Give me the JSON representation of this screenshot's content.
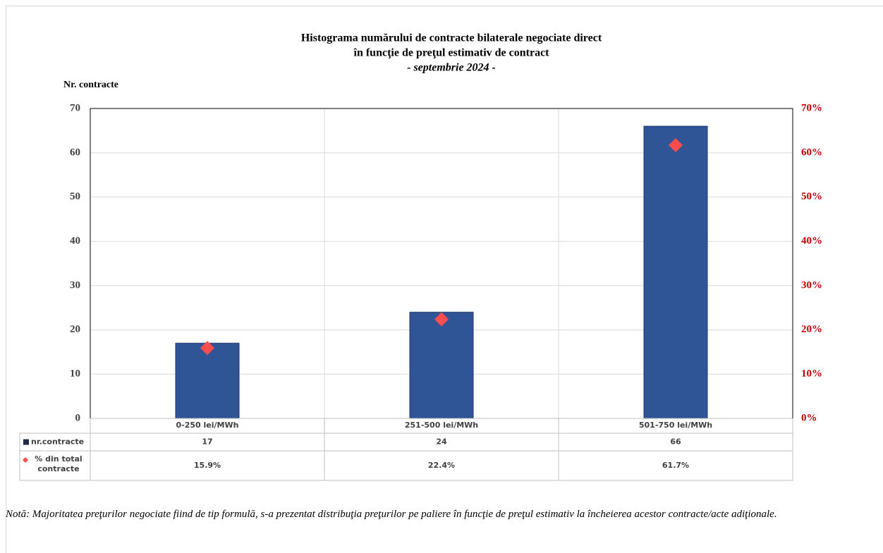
{
  "chart_data": {
    "type": "bar",
    "title": [
      "Histograma numărului de contracte bilaterale negociate direct",
      "în funcţie de preţul estimativ de contract"
    ],
    "subtitle": "-  septembrie 2024  -",
    "y_label": "Nr. contracte",
    "categories": [
      "0-250 lei/MWh",
      "251-500 lei/MWh",
      "501-750 lei/MWh"
    ],
    "series": [
      {
        "name": "nr.contracte",
        "color": "#2f5597",
        "values": [
          17,
          24,
          66
        ]
      },
      {
        "name": "% din total contracte",
        "color": "#ff4d4d",
        "axis": "y2",
        "marker": "diamond",
        "values": [
          15.9,
          22.4,
          61.7
        ],
        "value_labels": [
          "15.9%",
          "22.4%",
          "61.7%"
        ]
      }
    ],
    "ylim": [
      0,
      70
    ],
    "yticks": [
      0,
      10,
      20,
      30,
      40,
      50,
      60,
      70
    ],
    "y2lim": [
      0,
      70
    ],
    "y2ticks": [
      {
        "value": 0,
        "label": "0%"
      },
      {
        "value": 10,
        "label": "10%"
      },
      {
        "value": 20,
        "label": "20%"
      },
      {
        "value": 30,
        "label": "30%"
      },
      {
        "value": 40,
        "label": "40%"
      },
      {
        "value": 50,
        "label": "50%"
      },
      {
        "value": 60,
        "label": "60%"
      },
      {
        "value": 70,
        "label": "70%"
      }
    ],
    "y2_color": "#c00000",
    "grid": true,
    "data_table": true,
    "note": "Notă: Majoritatea preţurilor negociate fiind de tip formulă, s-a prezentat distribuţia preţurilor pe paliere în funcţie de preţul estimativ la încheierea acestor contracte/acte adiţionale."
  }
}
